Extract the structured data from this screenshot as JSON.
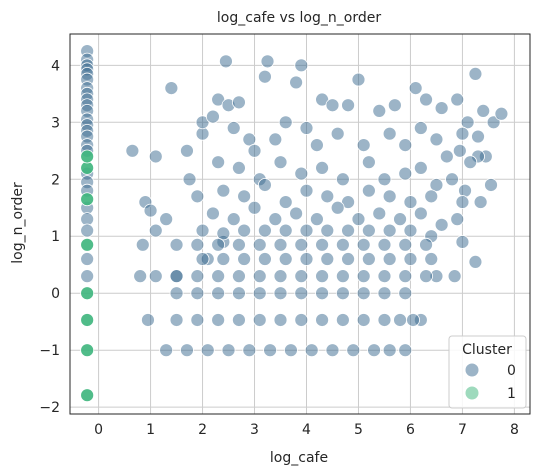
{
  "chart_data": {
    "type": "scatter",
    "title": "log_cafe vs log_n_order",
    "xlabel": "log_cafe",
    "ylabel": "log_n_order",
    "xlim": [
      -0.55,
      8.3
    ],
    "ylim": [
      -2.12,
      4.55
    ],
    "xticks": [
      0,
      1,
      2,
      3,
      4,
      5,
      6,
      7,
      8
    ],
    "yticks": [
      -2,
      -1,
      0,
      1,
      2,
      3,
      4
    ],
    "grid": true,
    "legend": {
      "title": "Cluster",
      "placement": "lower-right"
    },
    "series": [
      {
        "name": "0",
        "color": "#3a6a8f",
        "points": [
          [
            -0.22,
            4.25
          ],
          [
            -0.22,
            4.1
          ],
          [
            -0.22,
            4.0
          ],
          [
            -0.22,
            3.93
          ],
          [
            -0.22,
            3.85
          ],
          [
            -0.22,
            3.75
          ],
          [
            -0.22,
            3.6
          ],
          [
            -0.22,
            3.5
          ],
          [
            -0.22,
            3.4
          ],
          [
            -0.22,
            3.3
          ],
          [
            -0.22,
            3.2
          ],
          [
            -0.22,
            3.05
          ],
          [
            -0.22,
            2.95
          ],
          [
            -0.22,
            2.85
          ],
          [
            -0.22,
            2.75
          ],
          [
            -0.22,
            2.6
          ],
          [
            -0.22,
            2.5
          ],
          [
            -0.22,
            2.1
          ],
          [
            -0.22,
            1.95
          ],
          [
            -0.22,
            1.8
          ],
          [
            -0.22,
            1.5
          ],
          [
            -0.22,
            1.3
          ],
          [
            -0.22,
            1.1
          ],
          [
            -0.22,
            0.6
          ],
          [
            -0.22,
            0.3
          ],
          [
            0.65,
            2.5
          ],
          [
            1.1,
            2.4
          ],
          [
            1.4,
            3.6
          ],
          [
            0.9,
            1.6
          ],
          [
            1.0,
            1.45
          ],
          [
            1.3,
            1.3
          ],
          [
            1.7,
            2.5
          ],
          [
            1.75,
            2.0
          ],
          [
            1.9,
            1.7
          ],
          [
            2.0,
            2.8
          ],
          [
            0.85,
            0.85
          ],
          [
            1.1,
            1.1
          ],
          [
            1.5,
            0.85
          ],
          [
            0.8,
            0.3
          ],
          [
            1.1,
            0.3
          ],
          [
            0.95,
            -0.47
          ],
          [
            1.5,
            0.3
          ],
          [
            2.1,
            0.6
          ],
          [
            2.4,
            0.9
          ],
          [
            2.0,
            3.0
          ],
          [
            2.2,
            3.1
          ],
          [
            2.3,
            3.4
          ],
          [
            2.5,
            3.3
          ],
          [
            2.45,
            4.07
          ],
          [
            2.7,
            3.35
          ],
          [
            2.9,
            2.7
          ],
          [
            3.2,
            3.8
          ],
          [
            3.25,
            4.07
          ],
          [
            3.9,
            4.0
          ],
          [
            3.8,
            3.7
          ],
          [
            4.3,
            3.4
          ],
          [
            4.5,
            3.3
          ],
          [
            4.8,
            3.3
          ],
          [
            5.0,
            3.75
          ],
          [
            5.4,
            3.2
          ],
          [
            5.7,
            3.3
          ],
          [
            6.1,
            3.6
          ],
          [
            6.3,
            3.4
          ],
          [
            6.6,
            3.25
          ],
          [
            6.9,
            3.4
          ],
          [
            7.1,
            3.0
          ],
          [
            7.25,
            3.85
          ],
          [
            7.4,
            3.2
          ],
          [
            7.6,
            3.0
          ],
          [
            7.75,
            3.15
          ],
          [
            7.0,
            2.8
          ],
          [
            7.3,
            2.75
          ],
          [
            7.45,
            2.4
          ],
          [
            7.55,
            1.9
          ],
          [
            7.35,
            1.6
          ],
          [
            6.95,
            2.5
          ],
          [
            6.8,
            2.0
          ],
          [
            7.05,
            1.8
          ],
          [
            6.9,
            1.3
          ],
          [
            7.0,
            0.9
          ],
          [
            6.85,
            0.3
          ],
          [
            7.25,
            0.55
          ],
          [
            6.5,
            0.3
          ],
          [
            6.2,
            -0.47
          ],
          [
            6.05,
            -0.47
          ],
          [
            5.9,
            -1.0
          ],
          [
            7.3,
            2.4
          ],
          [
            7.15,
            2.3
          ],
          [
            7.0,
            1.6
          ],
          [
            2.6,
            2.9
          ],
          [
            3.0,
            2.5
          ],
          [
            3.4,
            2.7
          ],
          [
            3.6,
            3.0
          ],
          [
            4.0,
            2.9
          ],
          [
            4.2,
            2.6
          ],
          [
            4.6,
            2.8
          ],
          [
            5.1,
            2.6
          ],
          [
            5.6,
            2.8
          ],
          [
            5.9,
            2.6
          ],
          [
            6.2,
            2.9
          ],
          [
            6.5,
            2.7
          ],
          [
            6.7,
            2.4
          ],
          [
            2.3,
            2.3
          ],
          [
            2.7,
            2.2
          ],
          [
            3.1,
            2.0
          ],
          [
            3.5,
            2.3
          ],
          [
            3.9,
            2.1
          ],
          [
            4.3,
            2.2
          ],
          [
            4.7,
            2.0
          ],
          [
            5.2,
            2.3
          ],
          [
            5.5,
            2.0
          ],
          [
            5.9,
            2.1
          ],
          [
            6.2,
            2.2
          ],
          [
            6.5,
            1.9
          ],
          [
            2.4,
            1.8
          ],
          [
            2.8,
            1.7
          ],
          [
            3.2,
            1.9
          ],
          [
            3.6,
            1.6
          ],
          [
            4.0,
            1.8
          ],
          [
            4.4,
            1.7
          ],
          [
            4.8,
            1.6
          ],
          [
            5.2,
            1.8
          ],
          [
            5.6,
            1.7
          ],
          [
            6.0,
            1.6
          ],
          [
            6.4,
            1.7
          ],
          [
            2.2,
            1.4
          ],
          [
            2.6,
            1.3
          ],
          [
            3.0,
            1.5
          ],
          [
            3.4,
            1.3
          ],
          [
            3.8,
            1.4
          ],
          [
            4.2,
            1.3
          ],
          [
            4.6,
            1.5
          ],
          [
            5.0,
            1.3
          ],
          [
            5.4,
            1.4
          ],
          [
            5.8,
            1.3
          ],
          [
            6.2,
            1.4
          ],
          [
            6.6,
            1.2
          ],
          [
            2.0,
            1.1
          ],
          [
            2.4,
            1.05
          ],
          [
            2.8,
            1.1
          ],
          [
            3.2,
            1.1
          ],
          [
            3.6,
            1.1
          ],
          [
            4.0,
            1.1
          ],
          [
            4.4,
            1.1
          ],
          [
            4.8,
            1.1
          ],
          [
            5.2,
            1.1
          ],
          [
            5.6,
            1.1
          ],
          [
            6.0,
            1.1
          ],
          [
            6.4,
            1.0
          ],
          [
            1.9,
            0.85
          ],
          [
            2.3,
            0.85
          ],
          [
            2.7,
            0.85
          ],
          [
            3.1,
            0.85
          ],
          [
            3.5,
            0.85
          ],
          [
            3.9,
            0.85
          ],
          [
            4.3,
            0.85
          ],
          [
            4.7,
            0.85
          ],
          [
            5.1,
            0.85
          ],
          [
            5.5,
            0.85
          ],
          [
            5.9,
            0.85
          ],
          [
            6.3,
            0.85
          ],
          [
            2.0,
            0.6
          ],
          [
            2.4,
            0.6
          ],
          [
            2.8,
            0.6
          ],
          [
            3.2,
            0.6
          ],
          [
            3.6,
            0.6
          ],
          [
            4.0,
            0.6
          ],
          [
            4.4,
            0.6
          ],
          [
            4.8,
            0.6
          ],
          [
            5.2,
            0.6
          ],
          [
            5.6,
            0.6
          ],
          [
            6.0,
            0.6
          ],
          [
            6.4,
            0.6
          ],
          [
            1.5,
            0.3
          ],
          [
            1.9,
            0.3
          ],
          [
            2.3,
            0.3
          ],
          [
            2.7,
            0.3
          ],
          [
            3.1,
            0.3
          ],
          [
            3.5,
            0.3
          ],
          [
            3.9,
            0.3
          ],
          [
            4.3,
            0.3
          ],
          [
            4.7,
            0.3
          ],
          [
            5.1,
            0.3
          ],
          [
            5.5,
            0.3
          ],
          [
            5.9,
            0.3
          ],
          [
            6.3,
            0.3
          ],
          [
            1.5,
            0.0
          ],
          [
            1.9,
            0.0
          ],
          [
            2.3,
            0.0
          ],
          [
            2.7,
            0.0
          ],
          [
            3.1,
            0.0
          ],
          [
            3.5,
            0.0
          ],
          [
            3.9,
            0.0
          ],
          [
            4.3,
            0.0
          ],
          [
            4.7,
            0.0
          ],
          [
            5.1,
            0.0
          ],
          [
            5.5,
            0.0
          ],
          [
            5.9,
            0.0
          ],
          [
            1.5,
            -0.47
          ],
          [
            1.9,
            -0.47
          ],
          [
            2.3,
            -0.47
          ],
          [
            2.7,
            -0.47
          ],
          [
            3.1,
            -0.47
          ],
          [
            3.5,
            -0.47
          ],
          [
            3.9,
            -0.47
          ],
          [
            4.3,
            -0.47
          ],
          [
            4.7,
            -0.47
          ],
          [
            5.1,
            -0.47
          ],
          [
            5.5,
            -0.47
          ],
          [
            5.8,
            -0.47
          ],
          [
            1.3,
            -1.0
          ],
          [
            1.7,
            -1.0
          ],
          [
            2.1,
            -1.0
          ],
          [
            2.5,
            -1.0
          ],
          [
            2.9,
            -1.0
          ],
          [
            3.3,
            -1.0
          ],
          [
            3.7,
            -1.0
          ],
          [
            4.1,
            -1.0
          ],
          [
            4.5,
            -1.0
          ],
          [
            4.9,
            -1.0
          ],
          [
            5.3,
            -1.0
          ],
          [
            5.6,
            -1.0
          ]
        ]
      },
      {
        "name": "1",
        "color": "#3db57c",
        "points": [
          [
            -0.22,
            -1.79
          ],
          [
            -0.22,
            -1.0
          ],
          [
            -0.22,
            -0.47
          ],
          [
            -0.22,
            0.0
          ],
          [
            -0.22,
            0.85
          ],
          [
            -0.22,
            1.65
          ],
          [
            -0.22,
            2.2
          ],
          [
            -0.22,
            2.4
          ]
        ]
      }
    ]
  }
}
